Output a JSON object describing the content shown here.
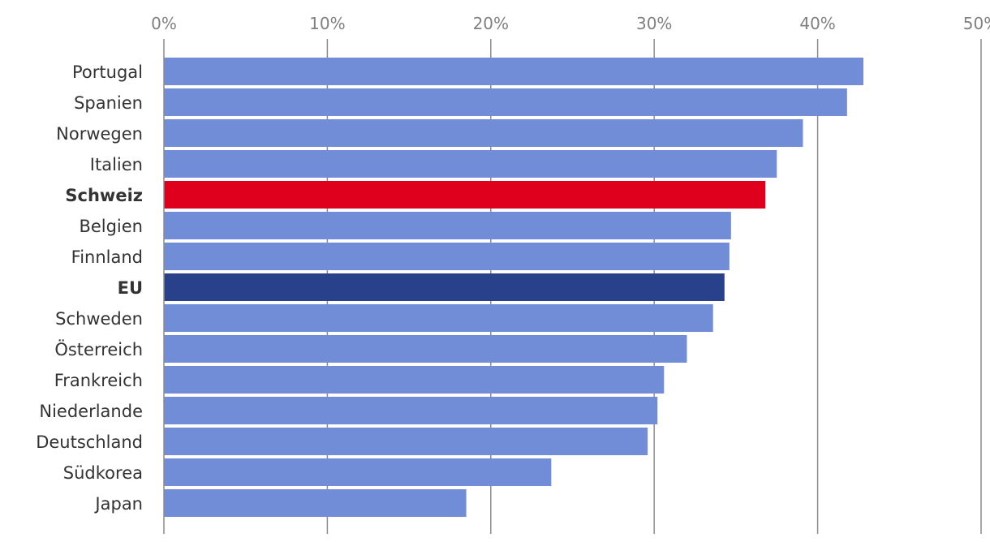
{
  "colors": {
    "default_bar": "#728dd8",
    "highlight_bar": "#de001c",
    "eu_bar": "#29408a",
    "grid": "#8c8c8c",
    "tick_text": "#808080",
    "category_text": "#333333"
  },
  "chart_data": {
    "type": "bar",
    "orientation": "horizontal",
    "title": "",
    "xlabel": "",
    "ylabel": "",
    "xlim": [
      0,
      50
    ],
    "x_axis_position": "top",
    "x_ticks": [
      "0%",
      "10%",
      "20%",
      "30%",
      "40%",
      "50%"
    ],
    "grid": true,
    "legend": "none",
    "categories": [
      "Portugal",
      "Spanien",
      "Norwegen",
      "Italien",
      "Schweiz",
      "Belgien",
      "Finnland",
      "EU",
      "Schweden",
      "Österreich",
      "Frankreich",
      "Niederlande",
      "Deutschland",
      "Südkorea",
      "Japan"
    ],
    "values": [
      42.8,
      41.8,
      39.1,
      37.5,
      36.8,
      34.7,
      34.6,
      34.3,
      33.6,
      32.0,
      30.6,
      30.2,
      29.6,
      23.7,
      18.5
    ],
    "highlight": {
      "Schweiz": "highlight_bar",
      "EU": "eu_bar"
    },
    "bold_categories": [
      "Schweiz",
      "EU"
    ]
  }
}
